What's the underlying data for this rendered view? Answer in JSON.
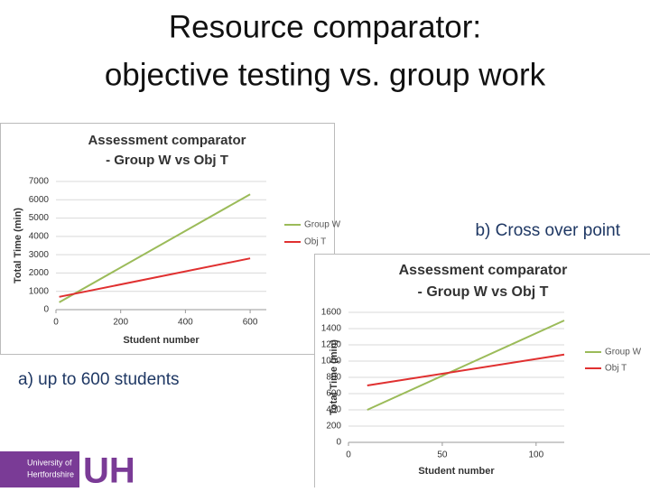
{
  "slide_title": [
    "Resource comparator:",
    "objective testing vs. group work"
  ],
  "captions": [
    "a) up to 600 students",
    "b) Cross over point"
  ],
  "logo": {
    "lines": [
      "University of",
      "Hertfordshire"
    ],
    "mark": "UH"
  },
  "chart_data": [
    {
      "type": "line",
      "title": [
        "Assessment comparator",
        "- Group W vs Obj T"
      ],
      "xlabel": "Student number",
      "ylabel": "Total Time (min)",
      "xlim": [
        0,
        650
      ],
      "xticks": [
        0,
        200,
        400,
        600
      ],
      "ylim": [
        0,
        7000
      ],
      "yticks": [
        0,
        1000,
        2000,
        3000,
        4000,
        5000,
        6000,
        7000
      ],
      "grid": true,
      "series": [
        {
          "name": "Group W",
          "color": "#9bbb59",
          "x": [
            10,
            600
          ],
          "values": [
            400,
            6300
          ]
        },
        {
          "name": "Obj T",
          "color": "#e03030",
          "x": [
            10,
            600
          ],
          "values": [
            700,
            2800
          ]
        }
      ]
    },
    {
      "type": "line",
      "title": [
        "Assessment comparator",
        "- Group W vs Obj T"
      ],
      "xlabel": "Student number",
      "ylabel": "Total Time (min)",
      "xlim": [
        0,
        115
      ],
      "xticks": [
        0,
        50,
        100
      ],
      "ylim": [
        0,
        1600
      ],
      "yticks": [
        0,
        200,
        400,
        600,
        800,
        1000,
        1200,
        1400,
        1600
      ],
      "grid": true,
      "series": [
        {
          "name": "Group W",
          "color": "#9bbb59",
          "x": [
            10,
            115
          ],
          "values": [
            400,
            1500
          ]
        },
        {
          "name": "Obj T",
          "color": "#e03030",
          "x": [
            10,
            115
          ],
          "values": [
            700,
            1080
          ]
        }
      ]
    }
  ]
}
